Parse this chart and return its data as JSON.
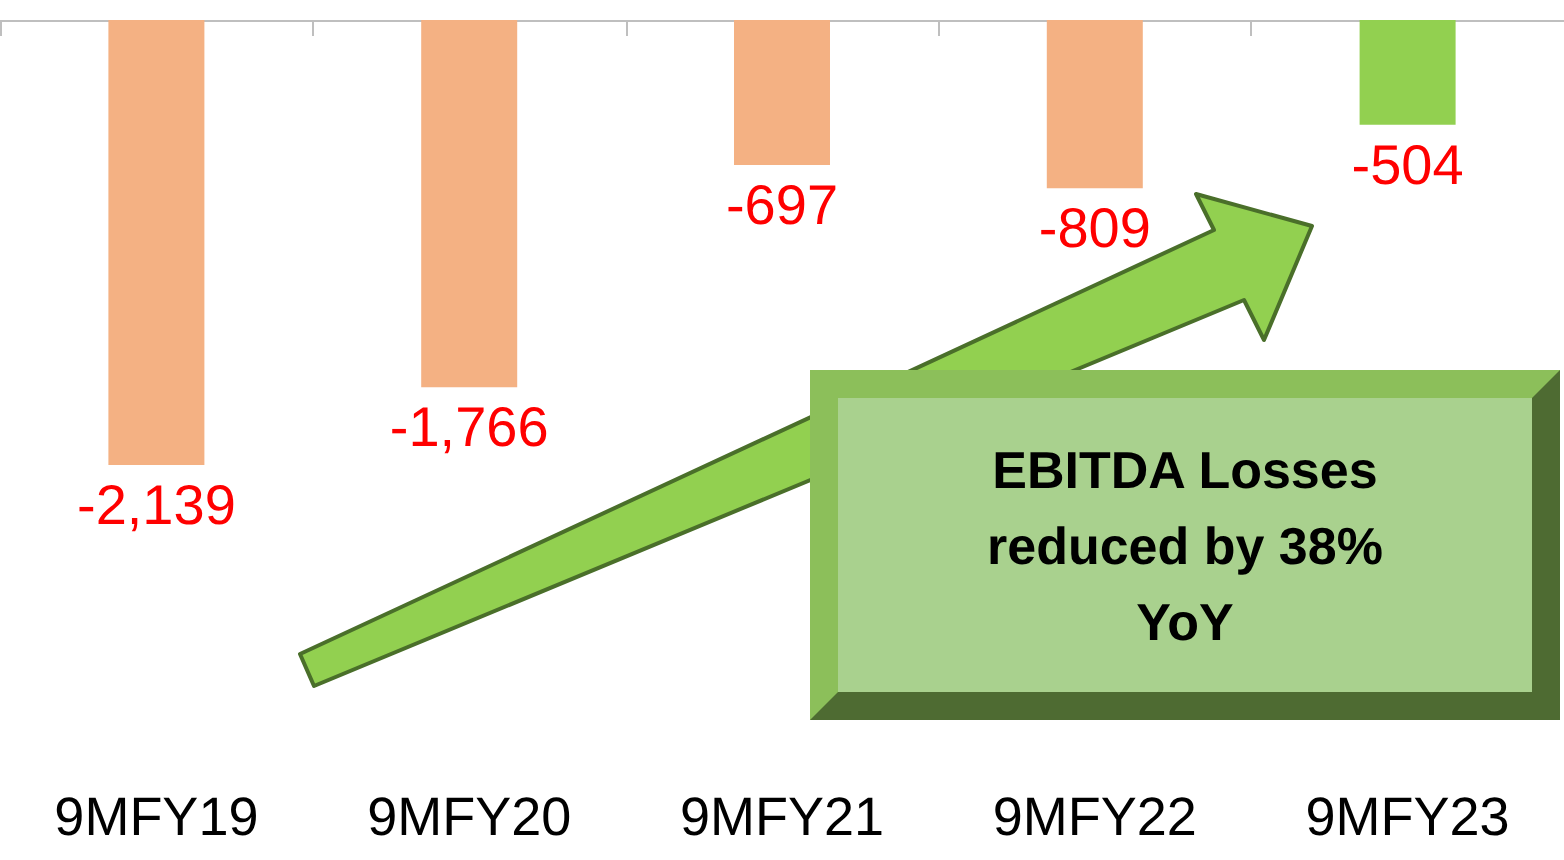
{
  "chart_data": {
    "type": "bar",
    "categories": [
      "9MFY19",
      "9MFY20",
      "9MFY21",
      "9MFY22",
      "9MFY23"
    ],
    "values": [
      -2139,
      -1766,
      -697,
      -809,
      -504
    ],
    "value_labels": [
      "-2,139",
      "-1,766",
      "-697",
      "-809",
      "-504"
    ],
    "colors": [
      "#f4b183",
      "#f4b183",
      "#f4b183",
      "#f4b183",
      "#92d050"
    ],
    "annotations": [
      "EBITDA Losses reduced by 38% YoY"
    ]
  }
}
